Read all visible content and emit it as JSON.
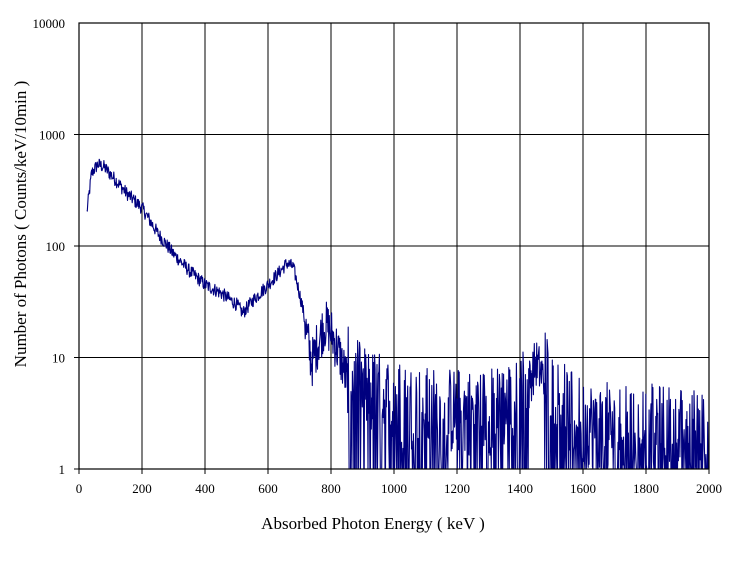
{
  "chart_data": {
    "type": "line",
    "title": "",
    "xlabel": "Absorbed Photon Energy ( keV )",
    "ylabel": "Number of Photons ( Counts/keV/10min )",
    "xlim": [
      0,
      2000
    ],
    "ylim": [
      1,
      10000
    ],
    "yscale": "log",
    "grid": true,
    "legend": "none",
    "x_ticks": [
      "0",
      "200",
      "400",
      "600",
      "800",
      "1000",
      "1200",
      "1400",
      "1600",
      "1800",
      "2000"
    ],
    "y_ticks": [
      "1",
      "10",
      "100",
      "1000",
      "10000"
    ],
    "series_color": "#00007F",
    "series": [
      {
        "x": [
          25,
          40,
          60,
          80,
          100,
          120,
          150,
          200,
          250,
          300,
          350,
          400,
          450,
          500,
          520,
          550,
          600,
          640,
          660,
          680,
          690,
          710,
          730,
          740,
          760,
          780,
          800,
          830,
          860,
          900,
          1000,
          1100,
          1200,
          1300,
          1400,
          1430,
          1450,
          1470,
          1500,
          1550,
          1600,
          1700,
          1800,
          1900,
          2000
        ],
        "y": [
          200,
          450,
          540,
          510,
          440,
          380,
          300,
          220,
          130,
          85,
          60,
          45,
          38,
          30,
          25,
          32,
          45,
          60,
          70,
          65,
          50,
          28,
          12,
          9,
          14,
          20,
          17,
          10,
          5,
          4,
          3,
          2.5,
          2.5,
          2.5,
          3,
          6,
          9,
          7,
          4,
          2.5,
          2,
          1.8,
          1.8,
          1.7,
          1.7
        ]
      }
    ]
  }
}
